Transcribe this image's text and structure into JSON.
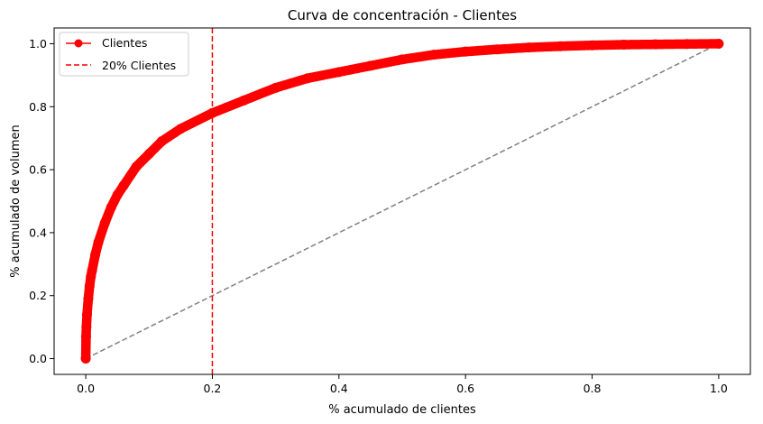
{
  "chart_data": {
    "type": "line",
    "title": "Curva de concentración - Clientes",
    "xlabel": "% acumulado de clientes",
    "ylabel": "% acumulado de volumen",
    "xlim": [
      -0.05,
      1.05
    ],
    "ylim": [
      -0.05,
      1.05
    ],
    "xticks": [
      "0.0",
      "0.2",
      "0.4",
      "0.6",
      "0.8",
      "1.0"
    ],
    "yticks": [
      "0.0",
      "0.2",
      "0.4",
      "0.6",
      "0.8",
      "1.0"
    ],
    "grid": false,
    "legend_position": "upper-left",
    "series": [
      {
        "name": "Clientes",
        "color": "#ff0000",
        "marker": "circle",
        "x": [
          0.0,
          0.0005,
          0.001,
          0.002,
          0.004,
          0.006,
          0.008,
          0.01,
          0.015,
          0.02,
          0.03,
          0.04,
          0.05,
          0.06,
          0.08,
          0.1,
          0.12,
          0.15,
          0.2,
          0.25,
          0.3,
          0.35,
          0.4,
          0.45,
          0.5,
          0.55,
          0.6,
          0.65,
          0.7,
          0.75,
          0.8,
          0.85,
          0.9,
          0.95,
          1.0
        ],
        "y": [
          0.0,
          0.07,
          0.1,
          0.14,
          0.19,
          0.23,
          0.26,
          0.28,
          0.33,
          0.37,
          0.43,
          0.48,
          0.52,
          0.55,
          0.61,
          0.65,
          0.69,
          0.73,
          0.78,
          0.82,
          0.86,
          0.89,
          0.91,
          0.93,
          0.95,
          0.965,
          0.975,
          0.982,
          0.988,
          0.992,
          0.995,
          0.997,
          0.998,
          0.999,
          1.0
        ]
      },
      {
        "name": "20% Clientes",
        "color": "#ff0000",
        "style": "dashed",
        "x_value": 0.2
      },
      {
        "style": "dashed",
        "color": "#808080",
        "x": [
          0.0,
          1.0
        ],
        "y": [
          0.0,
          1.0
        ]
      }
    ]
  }
}
